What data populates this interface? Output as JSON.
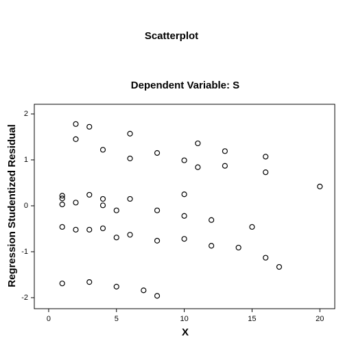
{
  "chart_data": {
    "type": "scatter",
    "title": "Scatterplot",
    "subtitle": "Dependent Variable: S",
    "x_label": "X",
    "y_label": "Regression Studentized Residual",
    "x": [
      2,
      3,
      6,
      2,
      4,
      8,
      11,
      13,
      16,
      6,
      10,
      11,
      13,
      16,
      20,
      1,
      1,
      3,
      4,
      10,
      6,
      1,
      2,
      4,
      5,
      8,
      10,
      12,
      15,
      1,
      2,
      3,
      4,
      6,
      5,
      8,
      10,
      12,
      14,
      16,
      17,
      1,
      3,
      5,
      7,
      8
    ],
    "y": [
      1.78,
      1.72,
      1.57,
      1.45,
      1.22,
      1.15,
      1.36,
      1.19,
      1.07,
      1.03,
      0.99,
      0.84,
      0.87,
      0.73,
      0.42,
      0.22,
      0.16,
      0.24,
      0.15,
      0.25,
      0.15,
      0.03,
      0.07,
      0.01,
      -0.1,
      -0.1,
      -0.22,
      -0.31,
      -0.46,
      -0.46,
      -0.52,
      -0.52,
      -0.49,
      -0.63,
      -0.69,
      -0.76,
      -0.72,
      -0.87,
      -0.91,
      -1.13,
      -1.33,
      -1.69,
      -1.66,
      -1.76,
      -1.84,
      -1.96
    ],
    "color": "#000000",
    "xlim": [
      -1.06,
      21.1
    ],
    "xticks": [
      0,
      5,
      10,
      15,
      20
    ],
    "ylim": [
      -2.24,
      2.21
    ],
    "yticks": [
      -2,
      -1,
      0,
      1,
      2
    ]
  }
}
